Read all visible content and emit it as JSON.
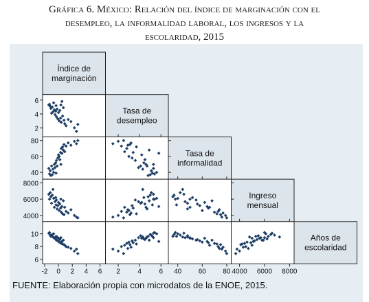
{
  "figure": {
    "title_lines": [
      "Gráfica 6. México: Relación del índice de marginación con el",
      "desempleo, la informalidad laboral, los ingresos y la",
      "escolaridad, 2015"
    ],
    "source": "FUENTE: Elaboración propia con microdatos de la ENOE, 2015."
  },
  "chart_data": {
    "type": "scatter",
    "subtype": "scatter-matrix (lower triangle)",
    "variables": [
      {
        "label_lines": [
          "Índice de",
          "marginación"
        ],
        "range": [
          -2,
          6.5
        ],
        "ticks": [
          -2,
          0,
          2,
          4,
          6
        ],
        "tick_side": "bottom"
      },
      {
        "label_lines": [
          "Tasa de",
          "desempleo"
        ],
        "range": [
          1,
          6.5
        ],
        "ticks": [
          2,
          4,
          6
        ],
        "tick_side": "left"
      },
      {
        "label_lines": [
          "Tasa de",
          "informalidad"
        ],
        "range": [
          34,
          82
        ],
        "ticks": [
          40,
          60,
          80
        ],
        "tick_side": "both"
      },
      {
        "label_lines": [
          "Ingreso",
          "mensual"
        ],
        "range": [
          3500,
          8200
        ],
        "ticks": [
          4000,
          6000,
          8000
        ],
        "tick_side": "both"
      },
      {
        "label_lines": [
          "Años de",
          "escolaridad"
        ],
        "range": [
          5.6,
          11.6
        ],
        "ticks": [
          6,
          8,
          10
        ],
        "tick_side": "left"
      }
    ],
    "marker_color": "#1f3f66",
    "label_box_color": "#dde5ec",
    "panel_bg_color": "#e6eef3",
    "observations": [
      [
        -1.4,
        5.3,
        45,
        6600,
        10.1
      ],
      [
        -1.3,
        5.4,
        38,
        6000,
        10.2
      ],
      [
        -1.2,
        5.1,
        42,
        6800,
        9.8
      ],
      [
        -1.1,
        4.8,
        36,
        6300,
        9.6
      ],
      [
        -1.0,
        4.1,
        48,
        5500,
        9.7
      ],
      [
        -0.9,
        5.0,
        37,
        6500,
        9.9
      ],
      [
        -0.8,
        4.3,
        44,
        7200,
        9.5
      ],
      [
        -0.7,
        5.6,
        40,
        6100,
        10.0
      ],
      [
        -0.6,
        4.6,
        50,
        5000,
        9.3
      ],
      [
        -0.5,
        3.9,
        46,
        5700,
        9.4
      ],
      [
        -0.4,
        4.4,
        52,
        6200,
        9.2
      ],
      [
        -0.35,
        5.2,
        39,
        5300,
        9.6
      ],
      [
        -0.3,
        3.6,
        55,
        5900,
        9.0
      ],
      [
        -0.2,
        4.7,
        48,
        4800,
        9.5
      ],
      [
        -0.1,
        3.3,
        58,
        5200,
        8.9
      ],
      [
        0.0,
        4.2,
        62,
        5600,
        9.3
      ],
      [
        0.1,
        3.0,
        60,
        4600,
        8.7
      ],
      [
        0.2,
        4.5,
        56,
        5400,
        9.1
      ],
      [
        0.3,
        3.4,
        65,
        4900,
        8.6
      ],
      [
        0.35,
        5.3,
        50,
        6000,
        9.4
      ],
      [
        0.4,
        2.8,
        70,
        4400,
        8.5
      ],
      [
        0.5,
        5.8,
        64,
        5100,
        8.8
      ],
      [
        0.6,
        3.7,
        72,
        4200,
        8.4
      ],
      [
        0.7,
        4.9,
        68,
        5800,
        9.0
      ],
      [
        0.8,
        3.1,
        75,
        4100,
        8.3
      ],
      [
        0.9,
        2.6,
        66,
        5000,
        8.2
      ],
      [
        1.1,
        2.3,
        73,
        4500,
        8.0
      ],
      [
        1.4,
        3.2,
        77,
        4300,
        7.9
      ],
      [
        2.3,
        2.0,
        79,
        4000,
        7.3
      ],
      [
        2.6,
        1.5,
        76,
        3800,
        7.6
      ],
      [
        2.8,
        2.5,
        80,
        3700,
        6.9
      ],
      [
        1.8,
        2.9,
        74,
        4700,
        7.7
      ]
    ]
  }
}
